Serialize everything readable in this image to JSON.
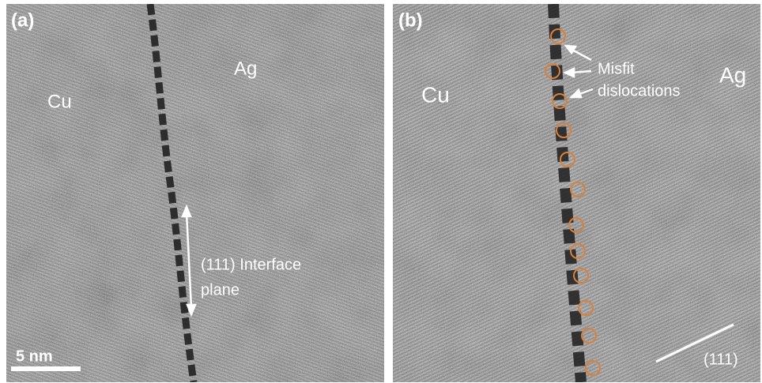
{
  "panels": [
    {
      "label": "(a)",
      "cu": "Cu",
      "ag": "Ag",
      "annotation": [
        "(111) Interface",
        "plane"
      ],
      "scale_bar": "5 nm"
    },
    {
      "label": "(b)",
      "cu": "Cu",
      "ag": "Ag",
      "annotation": [
        "Misfit",
        "dislocations"
      ],
      "direction": "(111)"
    }
  ]
}
